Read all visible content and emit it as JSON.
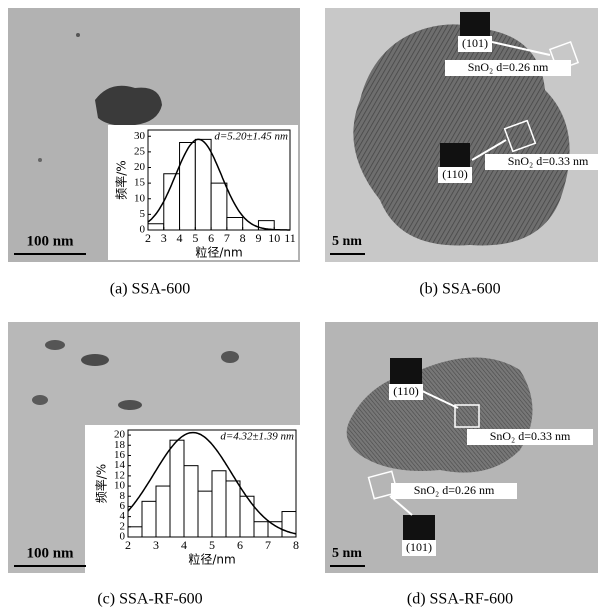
{
  "panels": [
    {
      "caption": "(a) SSA-600",
      "scale_bar": "100 nm"
    },
    {
      "caption": "(b) SSA-600",
      "scale_bar": "5 nm",
      "annotations": [
        "(101)",
        "SnO₂ d=0.26 nm",
        "(110)",
        "SnO₂ d=0.33 nm"
      ]
    },
    {
      "caption": "(c) SSA-RF-600",
      "scale_bar": "100 nm"
    },
    {
      "caption": "(d) SSA-RF-600",
      "scale_bar": "5 nm",
      "annotations": [
        "(110)",
        "SnO₂ d=0.33 nm",
        "SnO₂ d=0.26 nm",
        "(101)"
      ]
    }
  ],
  "chart_data": [
    {
      "type": "histogram",
      "annotation": "d=5.20±1.45 nm",
      "x_label": "粒径/nm",
      "y_label": "频率/%",
      "bins": [
        2,
        3,
        4,
        5,
        6,
        7,
        8,
        9,
        10,
        11
      ],
      "values": [
        2,
        18,
        28,
        29,
        15,
        4,
        0,
        3,
        0
      ],
      "fit": {
        "mean": 5.2,
        "sd": 1.45,
        "peak": 29
      },
      "xlim": [
        2,
        11
      ],
      "xticks": [
        2,
        3,
        4,
        5,
        6,
        7,
        8,
        9,
        10,
        11
      ],
      "ylim": [
        0,
        32
      ],
      "yticks": [
        0,
        5,
        10,
        15,
        20,
        25,
        30
      ]
    },
    {
      "type": "histogram",
      "annotation": "d=4.32±1.39 nm",
      "x_label": "粒径/nm",
      "y_label": "频率/%",
      "bins": [
        2,
        2.5,
        3,
        3.5,
        4,
        4.5,
        5,
        5.5,
        6,
        6.5,
        7,
        7.5,
        8
      ],
      "values": [
        2,
        7,
        10,
        19,
        14,
        9,
        13,
        11,
        8,
        3,
        3,
        5
      ],
      "fit": {
        "mean": 4.32,
        "sd": 1.39,
        "peak": 20.5
      },
      "xlim": [
        2,
        8
      ],
      "xticks": [
        2,
        3,
        4,
        5,
        6,
        7,
        8
      ],
      "ylim": [
        0,
        21
      ],
      "yticks": [
        0,
        2,
        4,
        6,
        8,
        10,
        12,
        14,
        16,
        18,
        20
      ]
    }
  ]
}
